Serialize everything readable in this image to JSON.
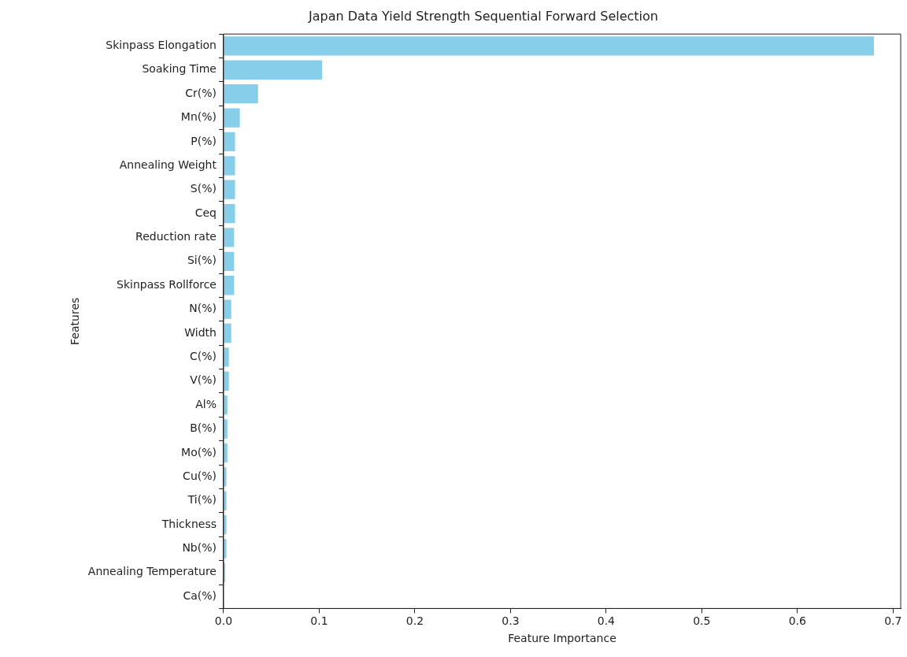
{
  "chart_data": {
    "type": "bar",
    "orientation": "horizontal",
    "title": "Japan Data Yield Strength Sequential Forward Selection",
    "xlabel": "Feature Importance",
    "ylabel": "Features",
    "categories": [
      "Skinpass Elongation",
      "Soaking Time",
      "Cr(%)",
      "Mn(%)",
      "P(%)",
      "Annealing Weight",
      "S(%)",
      "Ceq",
      "Reduction rate",
      "Si(%)",
      "Skinpass Rollforce",
      "N(%)",
      "Width",
      "C(%)",
      "V(%)",
      "Al%",
      "B(%)",
      "Mo(%)",
      "Cu(%)",
      "Ti(%)",
      "Thickness",
      "Nb(%)",
      "Annealing Temperature",
      "Ca(%)"
    ],
    "values": [
      0.68,
      0.103,
      0.036,
      0.017,
      0.012,
      0.012,
      0.012,
      0.012,
      0.011,
      0.011,
      0.011,
      0.008,
      0.008,
      0.0055,
      0.0055,
      0.004,
      0.004,
      0.004,
      0.003,
      0.003,
      0.003,
      0.003,
      0.0017,
      0
    ],
    "color": "#87ceeb",
    "xlim": [
      0,
      0.708
    ],
    "xticks": [
      {
        "value": 0,
        "label": "0.0"
      },
      0.1,
      0.2,
      0.3,
      0.4,
      0.5,
      0.6,
      0.7
    ],
    "grid": false,
    "legend": false
  }
}
